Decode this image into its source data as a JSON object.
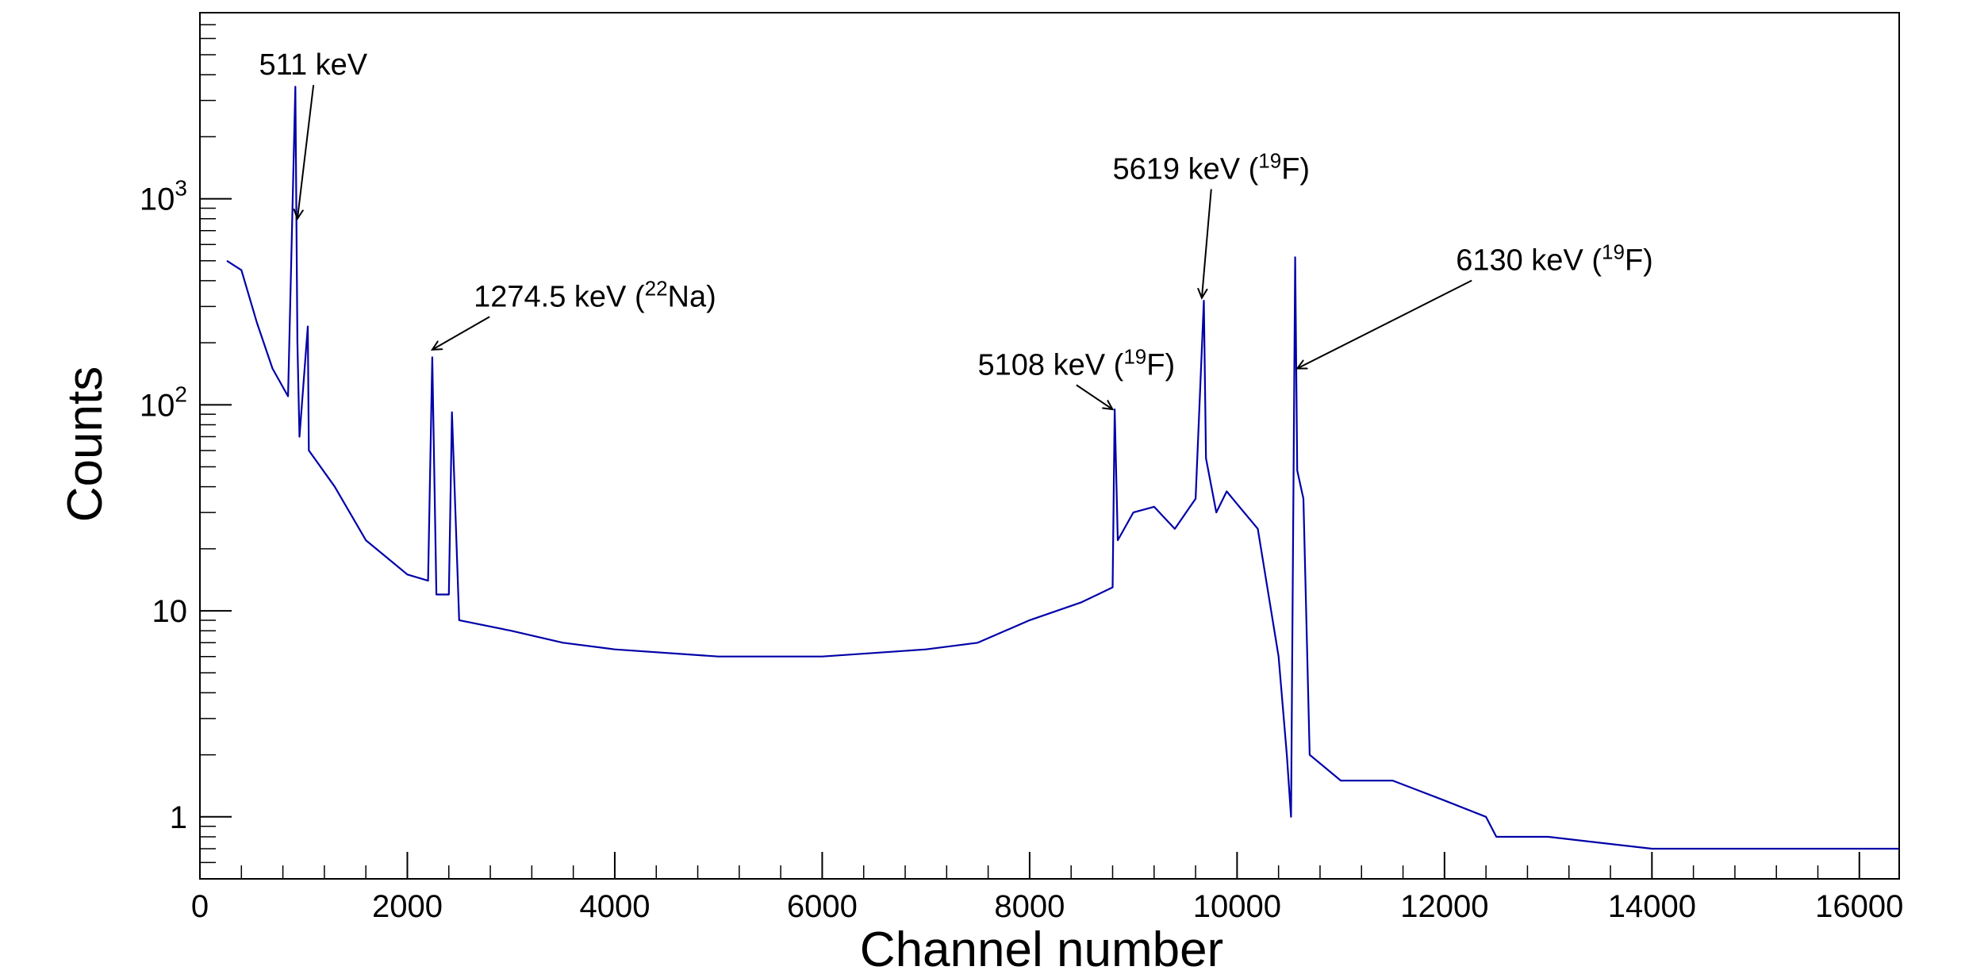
{
  "chart_data": {
    "type": "line",
    "title": "",
    "xlabel": "Channel number",
    "ylabel": "Counts",
    "xlim": [
      0,
      16384
    ],
    "ylim": [
      0.5,
      8000
    ],
    "yscale": "log",
    "grid": false,
    "legend": "none",
    "line_color": "#0000a8",
    "x_ticks": [
      {
        "value": 0,
        "label": "0"
      },
      {
        "value": 2000,
        "label": "2000"
      },
      {
        "value": 4000,
        "label": "4000"
      },
      {
        "value": 6000,
        "label": "6000"
      },
      {
        "value": 8000,
        "label": "8000"
      },
      {
        "value": 10000,
        "label": "10000"
      },
      {
        "value": 12000,
        "label": "12000"
      },
      {
        "value": 14000,
        "label": "14000"
      },
      {
        "value": 16000,
        "label": "16000"
      }
    ],
    "y_ticks": [
      {
        "value": 1,
        "label": "1"
      },
      {
        "value": 10,
        "label": "10"
      },
      {
        "value": 100,
        "base": "10",
        "exp": "2"
      },
      {
        "value": 1000,
        "base": "10",
        "exp": "3"
      }
    ],
    "series": [
      {
        "x": [
          260,
          400,
          550,
          700,
          850,
          920,
          940,
          960,
          1040,
          1050,
          1300,
          1600,
          2000,
          2200,
          2240,
          2280,
          2400,
          2430,
          2500,
          3000,
          3500,
          4000,
          5000,
          6000,
          7000,
          7500,
          8000,
          8500,
          8800,
          8820,
          8850,
          9000,
          9200,
          9400,
          9600,
          9680,
          9700,
          9800,
          9900,
          10000,
          10200,
          10400,
          10480,
          10520,
          10560,
          10580,
          10640,
          10700,
          11000,
          11500,
          12000,
          12400,
          12500,
          13000,
          14000,
          15000,
          16000,
          16384
        ],
        "y": [
          500,
          450,
          250,
          150,
          110,
          3500,
          200,
          70,
          240,
          60,
          40,
          22,
          15,
          14,
          170,
          12,
          12,
          92,
          9,
          8,
          7,
          6.5,
          6,
          6,
          6.5,
          7,
          9,
          11,
          13,
          95,
          22,
          30,
          32,
          25,
          35,
          320,
          55,
          30,
          38,
          33,
          25,
          6,
          2,
          1,
          520,
          48,
          35,
          2,
          1.5,
          1.5,
          1.2,
          1,
          0.8,
          0.8,
          0.7,
          0.7,
          0.7,
          0.7
        ]
      }
    ],
    "annotations": [
      {
        "label": "511 keV",
        "label_x": 570,
        "label_y": 4000,
        "x": 940,
        "y": 800
      },
      {
        "label": "1274.5 keV (",
        "sup": "22",
        "label_tail": "Na)",
        "label_x": 2640,
        "label_y": 300,
        "x": 2240,
        "y": 185
      },
      {
        "label": "5108 keV (",
        "sup": "19",
        "label_tail": "F)",
        "label_x": 7500,
        "label_y": 140,
        "x": 8800,
        "y": 95
      },
      {
        "label": "5619 keV (",
        "sup": "19",
        "label_tail": "F)",
        "label_x": 8800,
        "label_y": 1250,
        "x": 9660,
        "y": 330
      },
      {
        "label": "6130 keV (",
        "sup": "19",
        "label_tail": "F)",
        "label_x": 12110,
        "label_y": 450,
        "x": 10580,
        "y": 150
      }
    ]
  }
}
